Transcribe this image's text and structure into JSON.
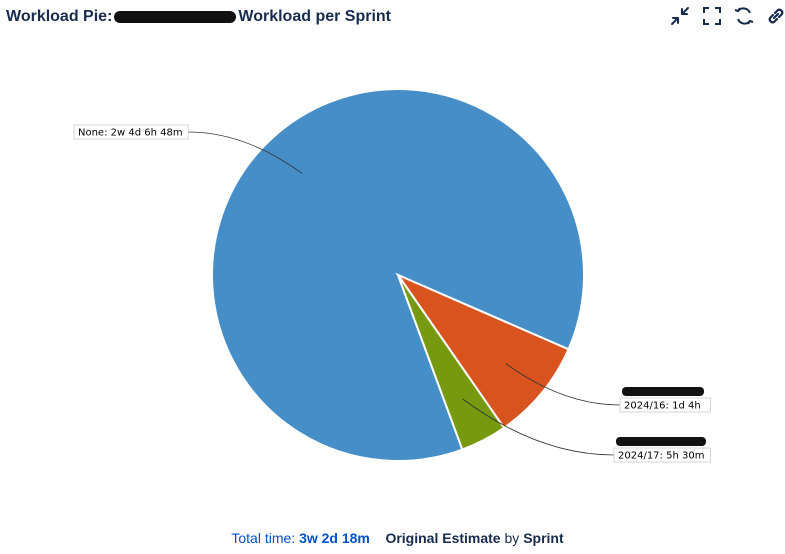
{
  "gadget": {
    "title_prefix": "Workload Pie:",
    "title_suffix": "Workload per Sprint"
  },
  "toolbar": {
    "icons": [
      "minimize-icon",
      "maximize-icon",
      "refresh-icon",
      "link-icon"
    ]
  },
  "chart_data": {
    "type": "pie",
    "slices": [
      {
        "label": "None: 2w 4d 6h 48m",
        "value": 118.8,
        "color": "#468ec8"
      },
      {
        "label": "2024/16: 1d 4h",
        "value": 12,
        "color": "#d9531e"
      },
      {
        "label": "2024/17: 5h 30m",
        "value": 5.5,
        "color": "#76990f"
      }
    ]
  },
  "footer": {
    "total_label": "Total time:",
    "total_value": "3w 2d 18m",
    "field": "Original Estimate",
    "by": "by",
    "group": "Sprint"
  }
}
